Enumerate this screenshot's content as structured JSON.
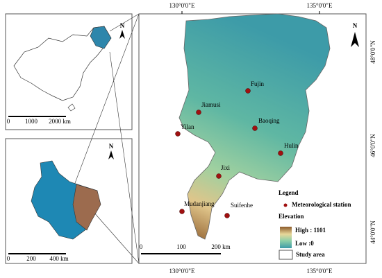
{
  "main_map": {
    "lon_labels_top": [
      "130°0'0\"E",
      "135°0'0\"E"
    ],
    "lon_labels_bottom": [
      "130°0'0\"E",
      "135°0'0\"E"
    ],
    "lat_labels": [
      "48°0'0\"N",
      "46°0'0\"N",
      "44°0'0\"N"
    ],
    "north": "N",
    "stations": [
      "Fujin",
      "Jiamusi",
      "Baoqing",
      "Yilan",
      "Hulin",
      "Jixi",
      "Mudanjiang",
      "Suifenhe"
    ],
    "scale": [
      "0",
      "100",
      "200 km"
    ]
  },
  "legend": {
    "title": "Legend",
    "station": "Meteorological station",
    "elevation": "Elevation",
    "high": "High : 1101",
    "low": "Low :0",
    "study_area": "Study area"
  },
  "china_inset": {
    "north": "N",
    "scale": [
      "0",
      "1000",
      "2000 km"
    ]
  },
  "province_inset": {
    "north": "N",
    "scale": [
      "0",
      "200",
      "400 km"
    ]
  }
}
